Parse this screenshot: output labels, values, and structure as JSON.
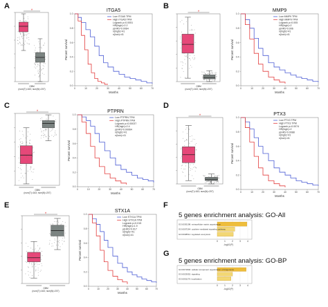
{
  "colors": {
    "red": "#e4356b",
    "gray": "#6e7775",
    "blue": "#4a5bd4",
    "kmred": "#e23b3b",
    "gold": "#eebd3b",
    "gold2": "#f3d774"
  },
  "chart_data": [
    {
      "panel": "A",
      "type": "box",
      "categories": [
        "T",
        "N"
      ],
      "median": [
        0.8,
        0.35
      ],
      "q1": [
        0.72,
        0.28
      ],
      "q3": [
        0.86,
        0.42
      ],
      "whislo": [
        0.45,
        0.0
      ],
      "whishi": [
        0.98,
        0.62
      ],
      "marker": "*",
      "xlabel": "GBM",
      "footnote": "(num(T)=163; num(N)=207)"
    },
    {
      "panel": "A",
      "type": "line",
      "title": "ITGA5",
      "xlabel": "Months",
      "ylabel": "Percent survival",
      "xlim": [
        0,
        70
      ],
      "ylim": [
        0,
        1
      ],
      "xticks": [
        "0",
        "10",
        "20",
        "30",
        "40",
        "50",
        "60",
        "70"
      ],
      "yticks": [
        "0.0",
        "0.2",
        "0.4",
        "0.6",
        "0.8",
        "1.0"
      ],
      "series": [
        {
          "name": "Low ITGA5 TPM",
          "color": "blue",
          "x": [
            0,
            3,
            6,
            10,
            14,
            18,
            22,
            26,
            30,
            35,
            40,
            45,
            50,
            55,
            60,
            65,
            70
          ],
          "y": [
            1,
            0.95,
            0.88,
            0.78,
            0.68,
            0.55,
            0.42,
            0.32,
            0.26,
            0.2,
            0.16,
            0.12,
            0.1,
            0.08,
            0.06,
            0.04,
            0.03
          ]
        },
        {
          "name": "High ITGA5 TPM",
          "color": "kmred",
          "x": [
            0,
            3,
            6,
            9,
            12,
            15,
            18,
            21,
            24,
            27,
            30
          ],
          "y": [
            1,
            0.9,
            0.7,
            0.5,
            0.3,
            0.18,
            0.1,
            0.06,
            0.04,
            0.02,
            0.02
          ]
        }
      ],
      "legend_note": [
        "Logrank p=0.0051",
        "HR(high)=2.2",
        "p(HR)=0.0064",
        "n(high)=41",
        "n(low)=41"
      ]
    },
    {
      "panel": "B",
      "type": "box",
      "categories": [
        "T",
        "N"
      ],
      "median": [
        0.55,
        0.06
      ],
      "q1": [
        0.42,
        0.04
      ],
      "q3": [
        0.7,
        0.1
      ],
      "whislo": [
        0.05,
        0.0
      ],
      "whishi": [
        0.95,
        0.16
      ],
      "marker": "*",
      "xlabel": "GBM",
      "footnote": "(num(T)=163; num(N)=207)"
    },
    {
      "panel": "B",
      "type": "line",
      "title": "MMP9",
      "xlabel": "Months",
      "ylabel": "Percent survival",
      "xlim": [
        0,
        70
      ],
      "ylim": [
        0,
        1
      ],
      "xticks": [
        "0",
        "10",
        "20",
        "30",
        "40",
        "50",
        "60",
        "70"
      ],
      "yticks": [
        "0.0",
        "0.2",
        "0.4",
        "0.6",
        "0.8",
        "1.0"
      ],
      "series": [
        {
          "name": "Low MMP9 TPM",
          "color": "blue",
          "x": [
            0,
            4,
            8,
            12,
            16,
            20,
            25,
            30,
            35,
            40,
            45,
            50,
            55,
            60,
            65,
            70
          ],
          "y": [
            1,
            0.92,
            0.8,
            0.66,
            0.52,
            0.42,
            0.32,
            0.26,
            0.22,
            0.18,
            0.15,
            0.12,
            0.1,
            0.08,
            0.06,
            0.05
          ]
        },
        {
          "name": "High MMP9 TPM",
          "color": "kmred",
          "x": [
            0,
            4,
            8,
            12,
            16,
            20,
            25,
            30,
            35,
            40
          ],
          "y": [
            1,
            0.85,
            0.65,
            0.45,
            0.3,
            0.2,
            0.12,
            0.08,
            0.05,
            0.03
          ]
        }
      ],
      "legend_note": [
        "Logrank p=0.005",
        "HR(high)=2",
        "p(HR)=0.006",
        "n(high)=41",
        "n(low)=41"
      ]
    },
    {
      "panel": "C",
      "type": "box",
      "categories": [
        "T",
        "N"
      ],
      "median": [
        0.42,
        0.86
      ],
      "q1": [
        0.3,
        0.8
      ],
      "q3": [
        0.55,
        0.9
      ],
      "whislo": [
        0.02,
        0.62
      ],
      "whishi": [
        0.8,
        0.98
      ],
      "marker": "*",
      "xlabel": "GBM",
      "footnote": "(num(T)=163; num(N)=207)"
    },
    {
      "panel": "C",
      "type": "line",
      "title": "PTPRN",
      "xlabel": "Months",
      "ylabel": "Percent survival",
      "xlim": [
        0,
        70
      ],
      "ylim": [
        0,
        1
      ],
      "xticks": [
        "0",
        "10",
        "20",
        "30",
        "40",
        "50",
        "60",
        "70"
      ],
      "yticks": [
        "0.0",
        "0.2",
        "0.4",
        "0.6",
        "0.8",
        "1.0"
      ],
      "series": [
        {
          "name": "Low PTPRN TPM",
          "color": "blue",
          "x": [
            0,
            4,
            8,
            12,
            16,
            20,
            25,
            30,
            35,
            40,
            45,
            50,
            55,
            60,
            65,
            70
          ],
          "y": [
            1,
            0.97,
            0.92,
            0.84,
            0.74,
            0.62,
            0.5,
            0.4,
            0.3,
            0.24,
            0.2,
            0.16,
            0.12,
            0.1,
            0.08,
            0.06
          ]
        },
        {
          "name": "High PTPRN TPM",
          "color": "kmred",
          "x": [
            0,
            4,
            8,
            12,
            16,
            20,
            25,
            30,
            35,
            40,
            45
          ],
          "y": [
            1,
            0.9,
            0.74,
            0.56,
            0.4,
            0.28,
            0.18,
            0.12,
            0.08,
            0.05,
            0.03
          ]
        }
      ],
      "legend_note": [
        "Logrank p=0.00037",
        "HR(high)=2.4",
        "p(HR)=0.00064",
        "n(high)=41",
        "n(low)=41"
      ]
    },
    {
      "panel": "D",
      "type": "box",
      "categories": [
        "T",
        "N"
      ],
      "median": [
        0.44,
        0.07
      ],
      "q1": [
        0.32,
        0.05
      ],
      "q3": [
        0.56,
        0.1
      ],
      "whislo": [
        0.05,
        0.0
      ],
      "whishi": [
        0.88,
        0.15
      ],
      "marker": "*",
      "xlabel": "GBM",
      "footnote": "(num(T)=163; num(N)=207)"
    },
    {
      "panel": "D",
      "type": "line",
      "title": "PTX3",
      "xlabel": "Months",
      "ylabel": "Percent survival",
      "xlim": [
        0,
        70
      ],
      "ylim": [
        0,
        1
      ],
      "xticks": [
        "0",
        "10",
        "20",
        "30",
        "40",
        "50",
        "60",
        "70"
      ],
      "yticks": [
        "0.0",
        "0.2",
        "0.4",
        "0.6",
        "0.8",
        "1.0"
      ],
      "series": [
        {
          "name": "Low PTX3 TPM",
          "color": "blue",
          "x": [
            0,
            4,
            8,
            12,
            16,
            20,
            25,
            30,
            35,
            40,
            45,
            50,
            55,
            60,
            65,
            70
          ],
          "y": [
            1,
            0.94,
            0.84,
            0.72,
            0.6,
            0.5,
            0.4,
            0.3,
            0.24,
            0.2,
            0.16,
            0.12,
            0.1,
            0.08,
            0.06,
            0.05
          ]
        },
        {
          "name": "High PTX3 TPM",
          "color": "kmred",
          "x": [
            0,
            4,
            8,
            12,
            16,
            20,
            25,
            30,
            35,
            40
          ],
          "y": [
            1,
            0.86,
            0.66,
            0.46,
            0.3,
            0.2,
            0.12,
            0.08,
            0.05,
            0.03
          ]
        }
      ],
      "legend_note": [
        "Logrank p=0.0074",
        "HR(high)=2",
        "p(HR)=0.0088",
        "n(high)=41",
        "n(low)=41"
      ]
    },
    {
      "panel": "E",
      "type": "box",
      "categories": [
        "T",
        "N"
      ],
      "median": [
        0.38,
        0.78
      ],
      "q1": [
        0.32,
        0.7
      ],
      "q3": [
        0.46,
        0.86
      ],
      "whislo": [
        0.08,
        0.5
      ],
      "whishi": [
        0.62,
        0.96
      ],
      "marker": "*",
      "xlabel": "GBM",
      "footnote": "(num(T)=163; num(N)=207)"
    },
    {
      "panel": "E",
      "type": "line",
      "title": "STX1A",
      "xlabel": "Months",
      "ylabel": "Percent survival",
      "xlim": [
        0,
        70
      ],
      "ylim": [
        0,
        1
      ],
      "xticks": [
        "0",
        "10",
        "20",
        "30",
        "40",
        "50",
        "60",
        "70"
      ],
      "yticks": [
        "0.0",
        "0.2",
        "0.4",
        "0.6",
        "0.8",
        "1.0"
      ],
      "series": [
        {
          "name": "Low STX1A TPM",
          "color": "blue",
          "x": [
            0,
            4,
            8,
            12,
            16,
            20,
            25,
            30,
            35,
            40,
            45,
            50,
            55,
            60,
            65,
            70
          ],
          "y": [
            1,
            0.94,
            0.86,
            0.76,
            0.64,
            0.54,
            0.42,
            0.32,
            0.26,
            0.2,
            0.16,
            0.13,
            0.1,
            0.08,
            0.06,
            0.05
          ]
        },
        {
          "name": "High STX1A TPM",
          "color": "kmred",
          "x": [
            0,
            4,
            8,
            12,
            16,
            20,
            25,
            30,
            35,
            40
          ],
          "y": [
            1,
            0.88,
            0.7,
            0.5,
            0.34,
            0.22,
            0.14,
            0.09,
            0.06,
            0.03
          ]
        }
      ],
      "legend_note": [
        "Logrank p=0.015",
        "HR(high)=1.9",
        "p(HR)=0.017",
        "n(high)=41",
        "n(low)=41"
      ]
    },
    {
      "panel": "F",
      "type": "bar",
      "title": "5 genes enrichment analysis: GO-All",
      "xlabel": "-log10(P)",
      "xlim": [
        0,
        4
      ],
      "xticks": [
        "0",
        "1",
        "2",
        "3",
        "4"
      ],
      "categories": [
        "GO:0030198: extracellular matrix organization",
        "GO:0007264: cytokine-mediated signaling pathway",
        "GO:0048511: regulated exocytosis"
      ],
      "values": [
        3.9,
        2.3,
        2.1
      ]
    },
    {
      "panel": "G",
      "type": "bar",
      "title": "5 genes enrichment analysis: GO-BP",
      "xlabel": "-log10(P)",
      "xlim": [
        0,
        4
      ],
      "xticks": [
        "0",
        "1",
        "2",
        "3",
        "4"
      ],
      "categories": [
        "GO:0071840: cellular component organization or biogenesis",
        "GO:0023052: signaling",
        "GO:0051179: localization"
      ],
      "values": [
        3.8,
        2.0,
        1.8
      ]
    }
  ]
}
